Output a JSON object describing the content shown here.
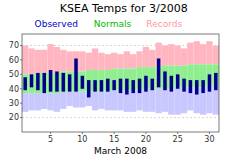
{
  "chart_data": {
    "type": "range_bar",
    "title": "KSEA Temps for 3/2008",
    "x_label": "March 2008",
    "x": [
      1,
      2,
      3,
      4,
      5,
      6,
      7,
      8,
      9,
      10,
      11,
      12,
      13,
      14,
      15,
      16,
      17,
      18,
      19,
      20,
      21,
      22,
      23,
      24,
      25,
      26,
      27,
      28,
      29,
      30,
      31
    ],
    "series": [
      {
        "name": "Observed",
        "color": "#00008b",
        "label_color": "#0000cc",
        "values": [
          48,
          50,
          51,
          51,
          53,
          52,
          51,
          50,
          61,
          49,
          46,
          46,
          46,
          47,
          46,
          47,
          47,
          46,
          47,
          49,
          47,
          61,
          52,
          49,
          50,
          47,
          46,
          46,
          46,
          50,
          51
        ],
        "low": [
          39,
          41,
          39,
          37,
          38,
          38,
          38,
          38,
          38,
          40,
          34,
          38,
          38,
          38,
          39,
          37,
          36,
          37,
          37,
          38,
          39,
          41,
          39,
          38,
          40,
          38,
          37,
          36,
          37,
          38,
          39
        ]
      },
      {
        "name": "Normals",
        "color": "#90ee90",
        "label_color": "#00bb00",
        "values": [
          50,
          50,
          51,
          51,
          51,
          51,
          52,
          52,
          52,
          52,
          53,
          53,
          53,
          53,
          54,
          54,
          54,
          54,
          55,
          55,
          55,
          55,
          56,
          56,
          56,
          56,
          57,
          57,
          57,
          57,
          57
        ],
        "low": [
          37,
          37,
          37,
          37,
          37,
          37,
          38,
          38,
          38,
          38,
          38,
          38,
          38,
          39,
          39,
          39,
          39,
          39,
          40,
          40,
          40,
          40,
          40,
          40,
          41,
          41,
          41,
          41,
          41,
          42,
          42
        ]
      },
      {
        "name": "Records",
        "color": "#ffb6c1",
        "low_color": "#c8c8ff",
        "label_color": "#ff9999",
        "values": [
          70,
          68,
          67,
          67,
          71,
          69,
          67,
          66,
          66,
          66,
          65,
          68,
          65,
          64,
          65,
          64,
          66,
          64,
          66,
          69,
          67,
          72,
          70,
          71,
          70,
          68,
          72,
          73,
          71,
          73,
          70
        ],
        "low": [
          24,
          25,
          25,
          26,
          25,
          24,
          26,
          28,
          27,
          27,
          28,
          25,
          26,
          25,
          25,
          25,
          24,
          24,
          25,
          24,
          24,
          23,
          24,
          22,
          22,
          23,
          25,
          23,
          22,
          23,
          22
        ]
      }
    ],
    "xlim": [
      0.5,
      31.5
    ],
    "xticks": [
      5,
      10,
      15,
      20,
      25,
      30
    ],
    "ylim": [
      10,
      78
    ],
    "yticks": [
      20,
      30,
      40,
      50,
      60,
      70
    ],
    "grid": true
  }
}
